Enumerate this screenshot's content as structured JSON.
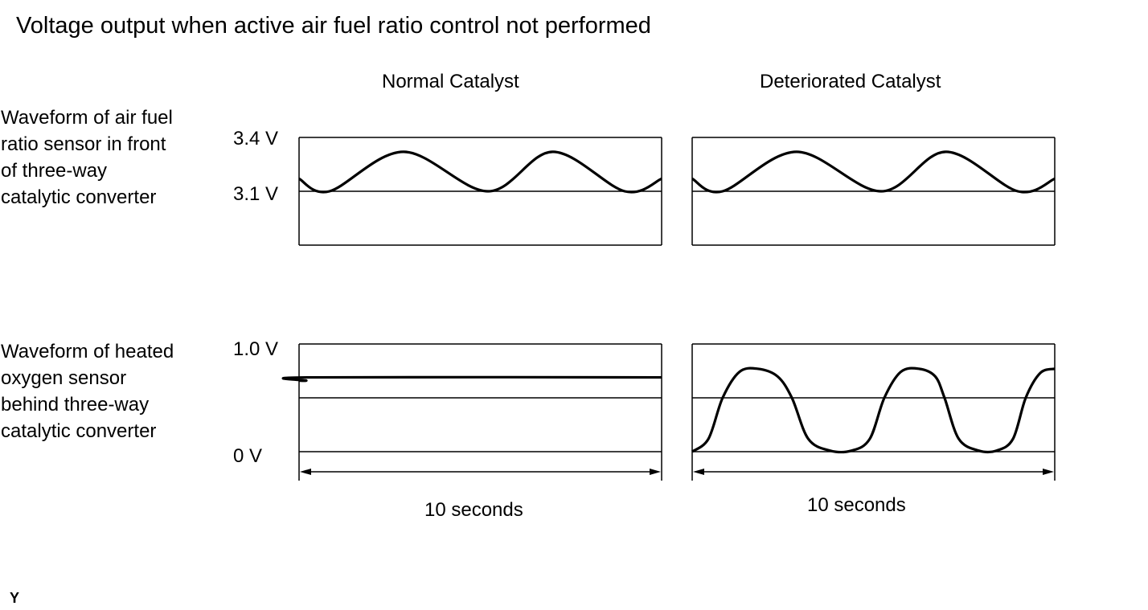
{
  "title": "Voltage output when active air fuel ratio control not performed",
  "columns": [
    "Normal Catalyst",
    "Deteriorated Catalyst"
  ],
  "rows": [
    {
      "label": "Waveform of air fuel\nratio sensor in front\nof three-way\ncatalytic converter",
      "ticks": [
        "3.4 V",
        "3.1 V"
      ]
    },
    {
      "label": "Waveform of heated\noxygen sensor\nbehind three-way\ncatalytic converter",
      "ticks": [
        "1.0 V",
        "0 V"
      ]
    }
  ],
  "time_span_labels": [
    "10 seconds",
    "10 seconds"
  ],
  "corner_mark": "Y",
  "chart_data": [
    {
      "type": "line",
      "panel": "air-fuel-ratio-sensor-normal",
      "x_unit": "s",
      "xlim": [
        0,
        10
      ],
      "ylim": [
        2.95,
        3.4
      ],
      "reference_line": 3.1,
      "points": [
        [
          0,
          3.17
        ],
        [
          0.84,
          3.1
        ],
        [
          2.88,
          3.32
        ],
        [
          5.21,
          3.1
        ],
        [
          7.0,
          3.32
        ],
        [
          8.98,
          3.1
        ],
        [
          10,
          3.17
        ]
      ]
    },
    {
      "type": "line",
      "panel": "air-fuel-ratio-sensor-deteriorated",
      "x_unit": "s",
      "xlim": [
        0,
        10
      ],
      "ylim": [
        2.95,
        3.4
      ],
      "reference_line": 3.1,
      "points": [
        [
          0,
          3.17
        ],
        [
          0.84,
          3.1
        ],
        [
          2.88,
          3.32
        ],
        [
          5.21,
          3.1
        ],
        [
          7.0,
          3.32
        ],
        [
          8.98,
          3.1
        ],
        [
          10,
          3.17
        ]
      ]
    },
    {
      "type": "line",
      "panel": "heated-oxygen-sensor-normal",
      "x_unit": "s",
      "xlim": [
        0,
        10
      ],
      "ylim": [
        0,
        1.0
      ],
      "reference_line": 0.5,
      "points": [
        [
          0,
          0.66
        ],
        [
          0.2,
          0.66
        ],
        [
          0.3,
          0.69
        ],
        [
          10,
          0.69
        ]
      ]
    },
    {
      "type": "line",
      "panel": "heated-oxygen-sensor-deteriorated",
      "x_unit": "s",
      "xlim": [
        0,
        10
      ],
      "ylim": [
        0,
        1.0
      ],
      "reference_line": 0.5,
      "points": [
        [
          0,
          0.0
        ],
        [
          0.45,
          0.12
        ],
        [
          0.84,
          0.5
        ],
        [
          1.3,
          0.74
        ],
        [
          1.8,
          0.77
        ],
        [
          2.35,
          0.7
        ],
        [
          2.75,
          0.5
        ],
        [
          3.2,
          0.12
        ],
        [
          3.8,
          0.01
        ],
        [
          4.4,
          0.01
        ],
        [
          4.9,
          0.12
        ],
        [
          5.3,
          0.5
        ],
        [
          5.75,
          0.74
        ],
        [
          6.25,
          0.77
        ],
        [
          6.7,
          0.7
        ],
        [
          6.96,
          0.5
        ],
        [
          7.35,
          0.12
        ],
        [
          7.9,
          0.01
        ],
        [
          8.4,
          0.01
        ],
        [
          8.85,
          0.12
        ],
        [
          9.2,
          0.5
        ],
        [
          9.6,
          0.73
        ],
        [
          10,
          0.77
        ]
      ]
    }
  ]
}
